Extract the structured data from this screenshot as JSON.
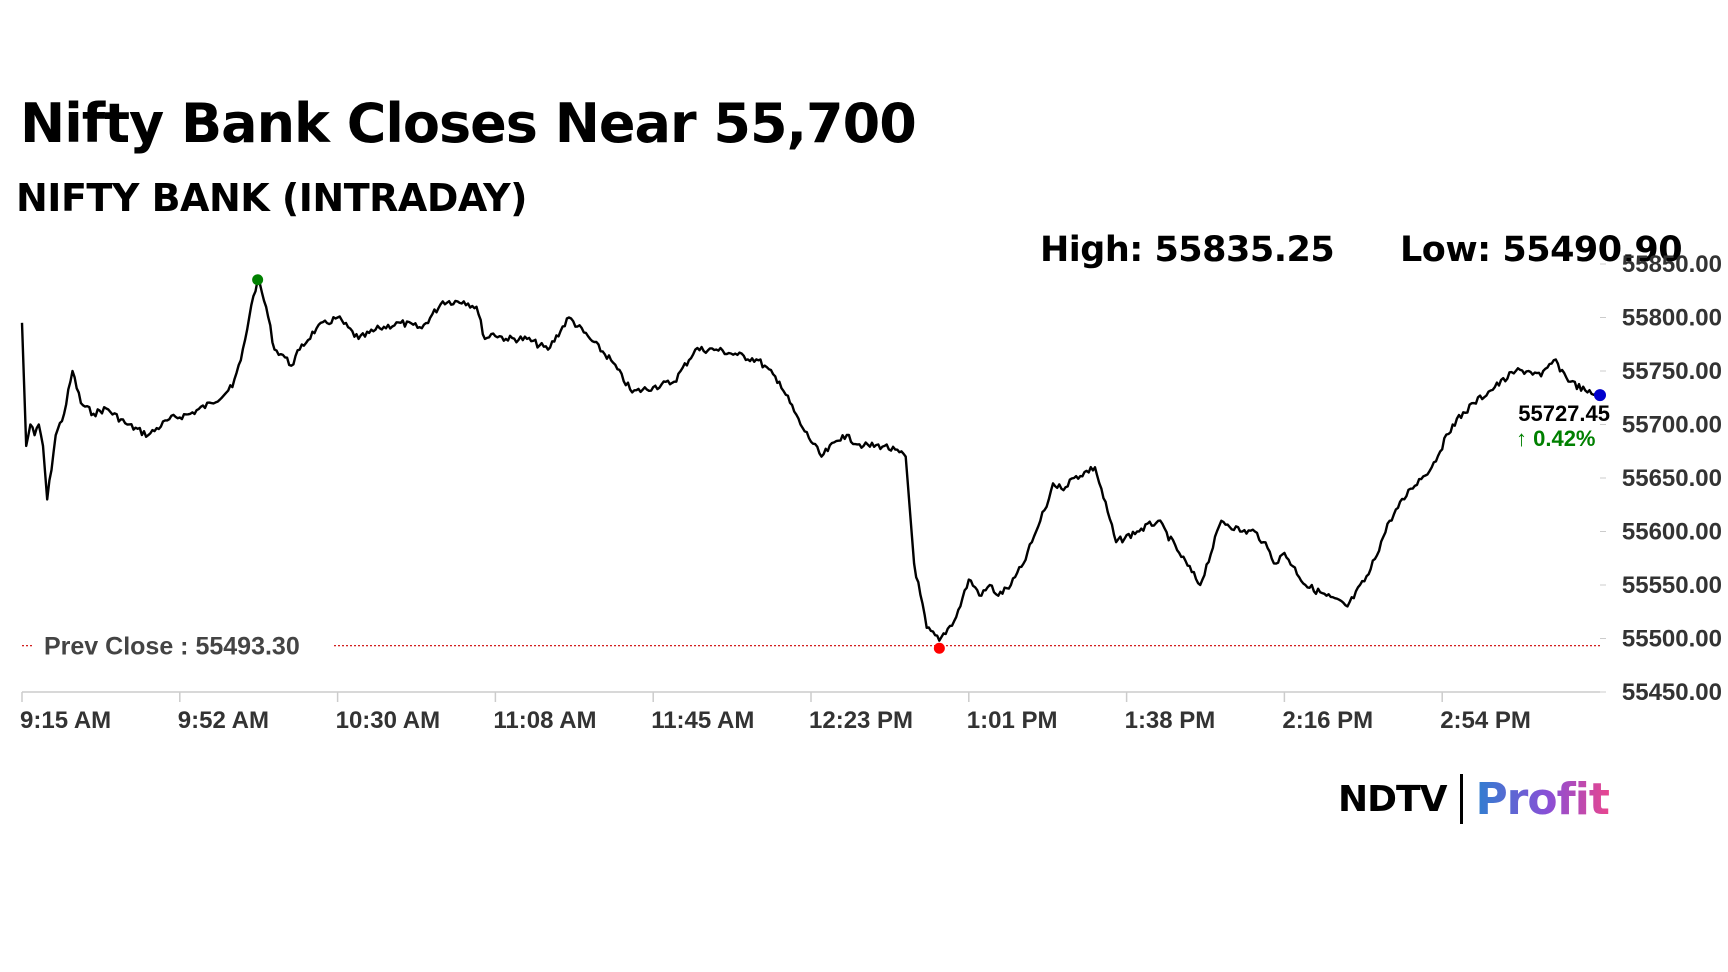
{
  "header": {
    "headline": "Nifty Bank Closes Near 55,700",
    "subtitle": "NIFTY BANK (INTRADAY)",
    "high_label": "High: 55835.25",
    "low_label": "Low: 55490.90"
  },
  "brand": {
    "ndtv": "NDTV",
    "profit": "Profit"
  },
  "colors": {
    "line": "#000000",
    "high_marker": "#008000",
    "low_marker": "#ff0000",
    "last_marker": "#0000cc",
    "change_up": "#008000",
    "prev_close_line": "#cc0000",
    "axis_text": "#333333"
  },
  "chart_data": {
    "type": "line",
    "title": "NIFTY BANK (INTRADAY)",
    "x_ticks": [
      "9:15 AM",
      "9:52 AM",
      "10:30 AM",
      "11:08 AM",
      "11:45 AM",
      "12:23 PM",
      "1:01 PM",
      "1:38 PM",
      "2:16 PM",
      "2:54 PM"
    ],
    "y_ticks": [
      "55450.00",
      "55500.00",
      "55550.00",
      "55600.00",
      "55650.00",
      "55700.00",
      "55750.00",
      "55800.00",
      "55850.00"
    ],
    "ylim": [
      55450,
      55850
    ],
    "xlim_minutes": [
      0,
      375
    ],
    "prev_close": 55493.3,
    "prev_close_label": "Prev Close : 55493.30",
    "high": 55835.25,
    "low": 55490.9,
    "last": 55727.45,
    "last_label": "55727.45",
    "change_label": "↑ 0.42%",
    "series": [
      {
        "x": [
          0,
          1,
          2,
          3,
          4,
          5,
          6,
          8,
          10,
          12,
          14,
          17,
          20,
          25,
          30,
          35,
          40,
          45,
          50,
          52,
          54,
          55,
          56,
          58,
          60,
          62,
          64,
          66,
          70,
          75,
          80,
          85,
          90,
          95,
          100,
          105,
          108,
          110,
          112,
          115,
          120,
          125,
          130,
          135,
          140,
          145,
          150,
          155,
          160,
          165,
          170,
          175,
          180,
          185,
          190,
          195,
          200,
          205,
          210,
          212,
          215,
          218,
          222,
          225,
          228,
          230,
          232,
          235,
          238,
          241,
          242,
          243,
          244,
          245,
          247,
          250,
          255,
          260,
          265,
          270,
          275,
          280,
          285,
          290,
          293,
          295,
          298,
          300,
          305,
          310,
          315,
          320,
          325,
          330,
          335,
          340,
          345,
          350,
          355,
          358,
          361,
          364,
          368,
          372,
          375
        ],
        "y": [
          55795,
          55680,
          55700,
          55690,
          55700,
          55680,
          55630,
          55690,
          55710,
          55750,
          55720,
          55710,
          55715,
          55700,
          55690,
          55705,
          55710,
          55720,
          55735,
          55760,
          55800,
          55820,
          55835,
          55810,
          55770,
          55765,
          55755,
          55770,
          55790,
          55800,
          55780,
          55790,
          55795,
          55790,
          55815,
          55815,
          55810,
          55780,
          55785,
          55780,
          55780,
          55770,
          55800,
          55780,
          55760,
          55730,
          55735,
          55740,
          55770,
          55770,
          55765,
          55760,
          55740,
          55700,
          55670,
          55690,
          55680,
          55680,
          55670,
          55570,
          55510,
          55498,
          55520,
          55555,
          55540,
          55550,
          55540,
          55550,
          55570,
          55600,
          55610,
          55620,
          55630,
          55645,
          55640,
          55650,
          55660,
          55590,
          55600,
          55610,
          55580,
          55550,
          55610,
          55600,
          55600,
          55590,
          55570,
          55580,
          55550,
          55540,
          55530,
          55560,
          55610,
          55640,
          55660,
          55700,
          55720,
          55735,
          55750,
          55750,
          55745,
          55760,
          55740,
          55730,
          55727.45
        ]
      }
    ]
  }
}
